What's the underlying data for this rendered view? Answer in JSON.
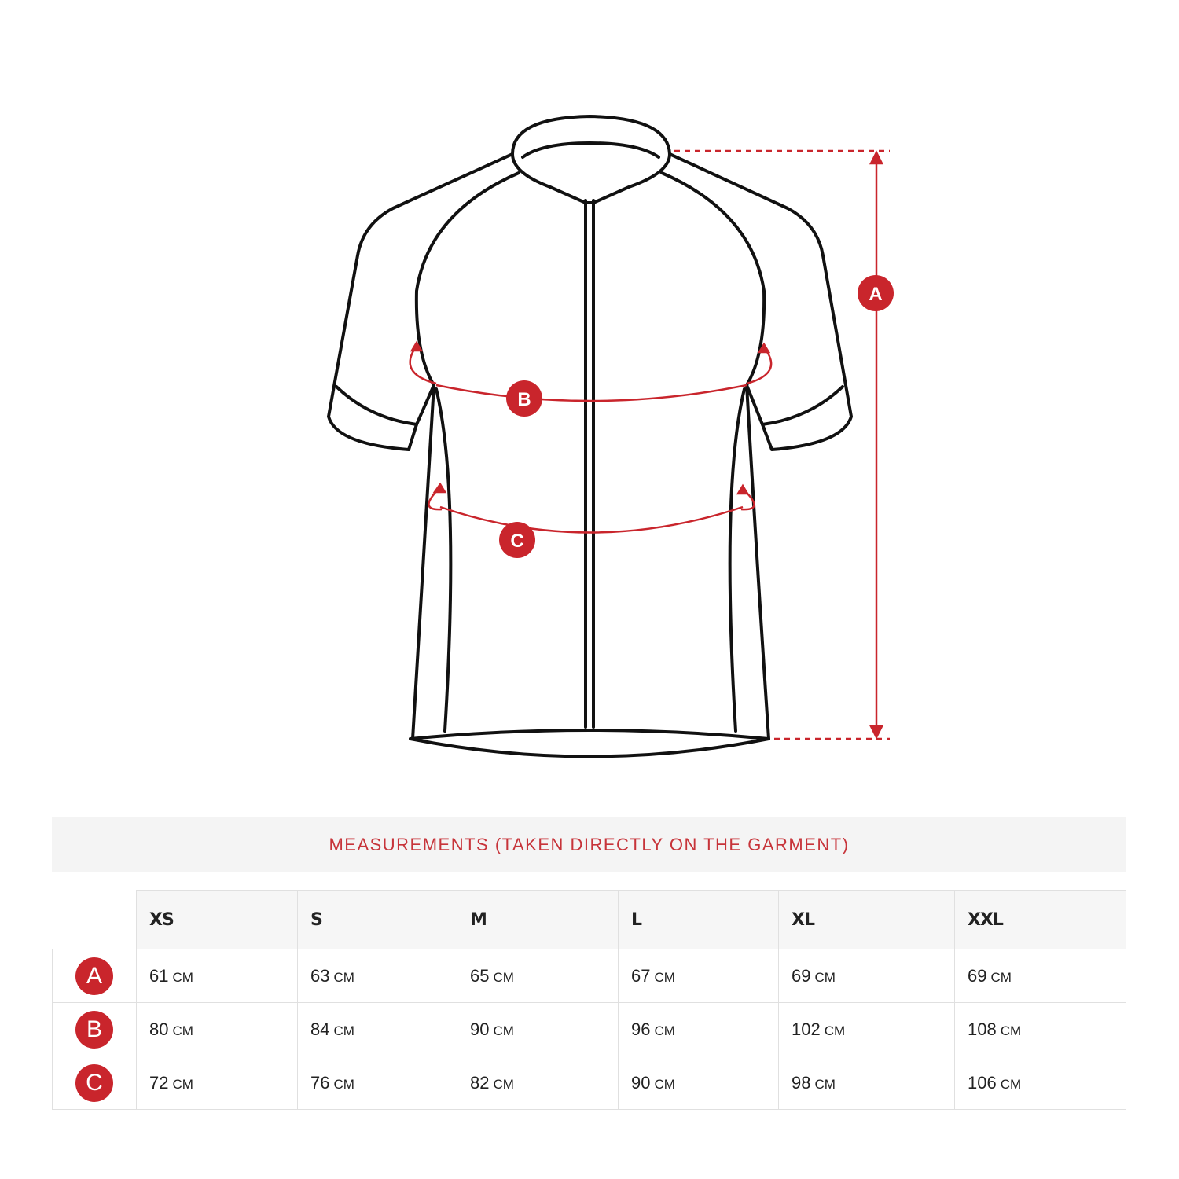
{
  "diagram": {
    "markers": [
      "A",
      "B",
      "C"
    ],
    "accent_color": "#c9252c"
  },
  "table": {
    "title": "MEASUREMENTS (TAKEN DIRECTLY ON THE GARMENT)",
    "sizes": [
      "XS",
      "S",
      "M",
      "L",
      "XL",
      "XXL"
    ],
    "unit": "CM",
    "rows": [
      {
        "label": "A",
        "values": [
          "61",
          "63",
          "65",
          "67",
          "69",
          "69"
        ]
      },
      {
        "label": "B",
        "values": [
          "80",
          "84",
          "90",
          "96",
          "102",
          "108"
        ]
      },
      {
        "label": "C",
        "values": [
          "72",
          "76",
          "82",
          "90",
          "98",
          "106"
        ]
      }
    ]
  }
}
